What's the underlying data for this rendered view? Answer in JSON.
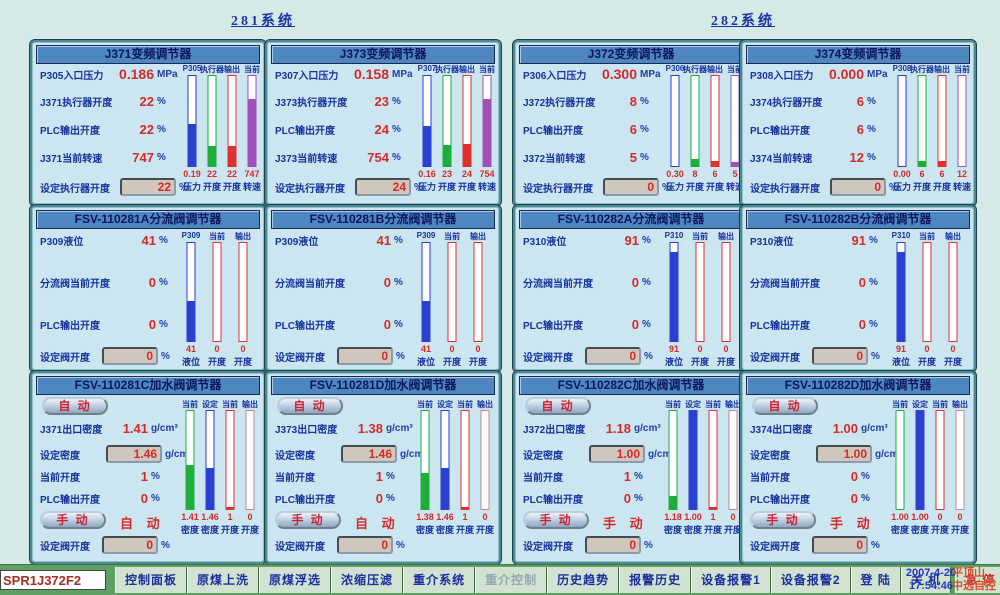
{
  "headers": [
    "281系统",
    "282系统"
  ],
  "theme": {
    "background": "#d5e9e6",
    "panel_bg": "#cbe6f0",
    "panel_frame": "#4f8a94",
    "title_bar": "#4e86c0",
    "label_blue": "#16329e",
    "value_red": "#d42a2a",
    "taskbar_green": "#5f9f63"
  },
  "panels": [
    {
      "type": "freq",
      "title": "J371变频调节器",
      "rows": [
        {
          "label": "P305入口压力",
          "value": "0.186",
          "unit": "MPa"
        },
        {
          "label": "J371执行器开度",
          "value": "22",
          "unit": "%"
        },
        {
          "label": "PLC输出开度",
          "value": "22",
          "unit": "%"
        },
        {
          "label": "J371当前转速",
          "value": "747",
          "unit": "%"
        }
      ],
      "set": {
        "label": "设定执行器开度",
        "value": "22",
        "unit": "%"
      },
      "bars": {
        "headers": [
          "P305",
          "执行器",
          "输出",
          "当前"
        ],
        "colors": [
          "#2b3fd0",
          "#1fae3a",
          "#e03030",
          "#a050b8"
        ],
        "fills": [
          47,
          22,
          22,
          75
        ],
        "values": [
          "0.19",
          "22",
          "22",
          "747"
        ],
        "axis": [
          "压力",
          "开度",
          "开度",
          "转速"
        ]
      }
    },
    {
      "type": "freq",
      "title": "J373变频调节器",
      "rows": [
        {
          "label": "P307入口压力",
          "value": "0.158",
          "unit": "MPa"
        },
        {
          "label": "J373执行器开度",
          "value": "23",
          "unit": "%"
        },
        {
          "label": "PLC输出开度",
          "value": "24",
          "unit": "%"
        },
        {
          "label": "J373当前转速",
          "value": "754",
          "unit": "%"
        }
      ],
      "set": {
        "label": "设定执行器开度",
        "value": "24",
        "unit": "%"
      },
      "bars": {
        "headers": [
          "P307",
          "执行器",
          "输出",
          "当前"
        ],
        "colors": [
          "#2b3fd0",
          "#1fae3a",
          "#e03030",
          "#a050b8"
        ],
        "fills": [
          44,
          23,
          24,
          75
        ],
        "values": [
          "0.16",
          "23",
          "24",
          "754"
        ],
        "axis": [
          "压力",
          "开度",
          "开度",
          "转速"
        ]
      }
    },
    {
      "type": "freq",
      "title": "J372变频调节器",
      "rows": [
        {
          "label": "P306入口压力",
          "value": "0.300",
          "unit": "MPa"
        },
        {
          "label": "J372执行器开度",
          "value": "8",
          "unit": "%"
        },
        {
          "label": "PLC输出开度",
          "value": "6",
          "unit": "%"
        },
        {
          "label": "J372当前转速",
          "value": "5",
          "unit": "%"
        }
      ],
      "set": {
        "label": "设定执行器开度",
        "value": "0",
        "unit": "%"
      },
      "bars": {
        "headers": [
          "P306",
          "执行器",
          "输出",
          "当前"
        ],
        "colors": [
          "#2b3fd0",
          "#1fae3a",
          "#e03030",
          "#a050b8"
        ],
        "fills": [
          0,
          8,
          6,
          5
        ],
        "values": [
          "0.30",
          "8",
          "6",
          "5"
        ],
        "axis": [
          "压力",
          "开度",
          "开度",
          "转速"
        ]
      }
    },
    {
      "type": "freq",
      "title": "J374变频调节器",
      "rows": [
        {
          "label": "P308入口压力",
          "value": "0.000",
          "unit": "MPa"
        },
        {
          "label": "J374执行器开度",
          "value": "6",
          "unit": "%"
        },
        {
          "label": "PLC输出开度",
          "value": "6",
          "unit": "%"
        },
        {
          "label": "J374当前转速",
          "value": "12",
          "unit": "%"
        }
      ],
      "set": {
        "label": "设定执行器开度",
        "value": "0",
        "unit": "%"
      },
      "bars": {
        "headers": [
          "P308",
          "执行器",
          "输出",
          "当前"
        ],
        "colors": [
          "#2b3fd0",
          "#1fae3a",
          "#e03030",
          "#a050b8"
        ],
        "fills": [
          0,
          6,
          6,
          0
        ],
        "values": [
          "0.00",
          "6",
          "6",
          "12"
        ],
        "axis": [
          "压力",
          "开度",
          "开度",
          "转速"
        ]
      }
    },
    {
      "type": "valve",
      "title": "FSV-110281A分流阀调节器",
      "rows": [
        {
          "label": "P309液位",
          "value": "41",
          "unit": "%"
        },
        {
          "label": "分流阀当前开度",
          "value": "0",
          "unit": "%"
        },
        {
          "label": "PLC输出开度",
          "value": "0",
          "unit": "%"
        }
      ],
      "set": {
        "label": "设定阀开度",
        "value": "0",
        "unit": "%"
      },
      "bars": {
        "headers": [
          "P309",
          "当前",
          "输出"
        ],
        "colors": [
          "#2b3fd0",
          "#e03030",
          "#e03030"
        ],
        "fills": [
          41,
          0,
          0
        ],
        "values": [
          "41",
          "0",
          "0"
        ],
        "axis": [
          "液位",
          "开度",
          "开度"
        ]
      }
    },
    {
      "type": "valve",
      "title": "FSV-110281B分流阀调节器",
      "rows": [
        {
          "label": "P309液位",
          "value": "41",
          "unit": "%"
        },
        {
          "label": "分流阀当前开度",
          "value": "0",
          "unit": "%"
        },
        {
          "label": "PLC输出开度",
          "value": "0",
          "unit": "%"
        }
      ],
      "set": {
        "label": "设定阀开度",
        "value": "0",
        "unit": "%"
      },
      "bars": {
        "headers": [
          "P309",
          "当前",
          "输出"
        ],
        "colors": [
          "#2b3fd0",
          "#e03030",
          "#e03030"
        ],
        "fills": [
          41,
          0,
          0
        ],
        "values": [
          "41",
          "0",
          "0"
        ],
        "axis": [
          "液位",
          "开度",
          "开度"
        ]
      }
    },
    {
      "type": "valve",
      "title": "FSV-110282A分流阀调节器",
      "rows": [
        {
          "label": "P310液位",
          "value": "91",
          "unit": "%"
        },
        {
          "label": "分流阀当前开度",
          "value": "0",
          "unit": "%"
        },
        {
          "label": "PLC输出开度",
          "value": "0",
          "unit": "%"
        }
      ],
      "set": {
        "label": "设定阀开度",
        "value": "0",
        "unit": "%"
      },
      "bars": {
        "headers": [
          "P310",
          "当前",
          "输出"
        ],
        "colors": [
          "#2b3fd0",
          "#e03030",
          "#e03030"
        ],
        "fills": [
          91,
          0,
          0
        ],
        "values": [
          "91",
          "0",
          "0"
        ],
        "axis": [
          "液位",
          "开度",
          "开度"
        ]
      }
    },
    {
      "type": "valve",
      "title": "FSV-110282B分流阀调节器",
      "rows": [
        {
          "label": "P310液位",
          "value": "91",
          "unit": "%"
        },
        {
          "label": "分流阀当前开度",
          "value": "0",
          "unit": "%"
        },
        {
          "label": "PLC输出开度",
          "value": "0",
          "unit": "%"
        }
      ],
      "set": {
        "label": "设定阀开度",
        "value": "0",
        "unit": "%"
      },
      "bars": {
        "headers": [
          "P310",
          "当前",
          "输出"
        ],
        "colors": [
          "#2b3fd0",
          "#e03030",
          "#e03030"
        ],
        "fills": [
          91,
          0,
          0
        ],
        "values": [
          "91",
          "0",
          "0"
        ],
        "axis": [
          "液位",
          "开度",
          "开度"
        ]
      }
    },
    {
      "type": "water",
      "title": "FSV-110281C加水阀调节器",
      "auto_button": "自 动",
      "manual_button": "手 动",
      "mode_text": "自 动",
      "rows": [
        {
          "label": "J371出口密度",
          "value": "1.41",
          "unit": "g/cm³"
        },
        {
          "label": "设定密度",
          "value": "1.46",
          "unit": "g/cm³",
          "input": true
        },
        {
          "label": "当前开度",
          "value": "1",
          "unit": "%"
        },
        {
          "label": "PLC输出开度",
          "value": "0",
          "unit": "%"
        }
      ],
      "set": {
        "label": "设定阀开度",
        "value": "0",
        "unit": "%"
      },
      "bars": {
        "headers": [
          "当前",
          "设定",
          "当前",
          "输出"
        ],
        "colors": [
          "#1fae3a",
          "#2b3fd0",
          "#e03030",
          "#d08090"
        ],
        "fills": [
          45,
          42,
          2,
          0
        ],
        "values": [
          "1.41",
          "1.46",
          "1",
          "0"
        ],
        "axis": [
          "密度",
          "密度",
          "开度",
          "开度"
        ]
      }
    },
    {
      "type": "water",
      "title": "FSV-110281D加水阀调节器",
      "auto_button": "自 动",
      "manual_button": "手 动",
      "mode_text": "自 动",
      "rows": [
        {
          "label": "J373出口密度",
          "value": "1.38",
          "unit": "g/cm³"
        },
        {
          "label": "设定密度",
          "value": "1.46",
          "unit": "g/cm³",
          "input": true
        },
        {
          "label": "当前开度",
          "value": "1",
          "unit": "%"
        },
        {
          "label": "PLC输出开度",
          "value": "0",
          "unit": "%"
        }
      ],
      "set": {
        "label": "设定阀开度",
        "value": "0",
        "unit": "%"
      },
      "bars": {
        "headers": [
          "当前",
          "设定",
          "当前",
          "输出"
        ],
        "colors": [
          "#1fae3a",
          "#2b3fd0",
          "#e03030",
          "#d08090"
        ],
        "fills": [
          37,
          42,
          2,
          0
        ],
        "values": [
          "1.38",
          "1.46",
          "1",
          "0"
        ],
        "axis": [
          "密度",
          "密度",
          "开度",
          "开度"
        ]
      }
    },
    {
      "type": "water",
      "title": "FSV-110282C加水阀调节器",
      "auto_button": "自 动",
      "manual_button": "手 动",
      "mode_text": "手 动",
      "rows": [
        {
          "label": "J372出口密度",
          "value": "1.18",
          "unit": "g/cm³"
        },
        {
          "label": "设定密度",
          "value": "1.00",
          "unit": "g/cm³",
          "input": true
        },
        {
          "label": "当前开度",
          "value": "1",
          "unit": "%"
        },
        {
          "label": "PLC输出开度",
          "value": "0",
          "unit": "%"
        }
      ],
      "set": {
        "label": "设定阀开度",
        "value": "0",
        "unit": "%"
      },
      "bars": {
        "headers": [
          "当前",
          "设定",
          "当前",
          "输出"
        ],
        "colors": [
          "#1fae3a",
          "#2b3fd0",
          "#e03030",
          "#d08090"
        ],
        "fills": [
          13,
          100,
          2,
          0
        ],
        "values": [
          "1.18",
          "1.00",
          "1",
          "0"
        ],
        "axis": [
          "密度",
          "密度",
          "开度",
          "开度"
        ]
      }
    },
    {
      "type": "water",
      "title": "FSV-110282D加水阀调节器",
      "auto_button": "自 动",
      "manual_button": "手 动",
      "mode_text": "手 动",
      "rows": [
        {
          "label": "J374出口密度",
          "value": "1.00",
          "unit": "g/cm³"
        },
        {
          "label": "设定密度",
          "value": "1.00",
          "unit": "g/cm³",
          "input": true
        },
        {
          "label": "当前开度",
          "value": "0",
          "unit": "%"
        },
        {
          "label": "PLC输出开度",
          "value": "0",
          "unit": "%"
        }
      ],
      "set": {
        "label": "设定阀开度",
        "value": "0",
        "unit": "%"
      },
      "bars": {
        "headers": [
          "当前",
          "设定",
          "当前",
          "输出"
        ],
        "colors": [
          "#1fae3a",
          "#2b3fd0",
          "#e03030",
          "#d08090"
        ],
        "fills": [
          0,
          100,
          0,
          0
        ],
        "values": [
          "1.00",
          "1.00",
          "0",
          "0"
        ],
        "axis": [
          "密度",
          "密度",
          "开度",
          "开度"
        ]
      }
    }
  ],
  "taskbar": {
    "input_value": "SPR1J372F2",
    "buttons": [
      {
        "label": "控制面板"
      },
      {
        "label": "原煤上洗"
      },
      {
        "label": "原煤浮选"
      },
      {
        "label": "浓缩压滤"
      },
      {
        "label": "重介系统"
      },
      {
        "label": "重介控制",
        "disabled": true
      },
      {
        "label": "历史趋势"
      },
      {
        "label": "报警历史"
      },
      {
        "label": "设备报警1"
      },
      {
        "label": "设备报警2"
      },
      {
        "label": "登 陆"
      },
      {
        "label": "关 机"
      },
      {
        "label": "急 停",
        "emergency": true
      }
    ],
    "date": "2007-4-20",
    "time": "17:54:46",
    "brand_line1": "平顶山",
    "brand_line2": "中选自控"
  }
}
